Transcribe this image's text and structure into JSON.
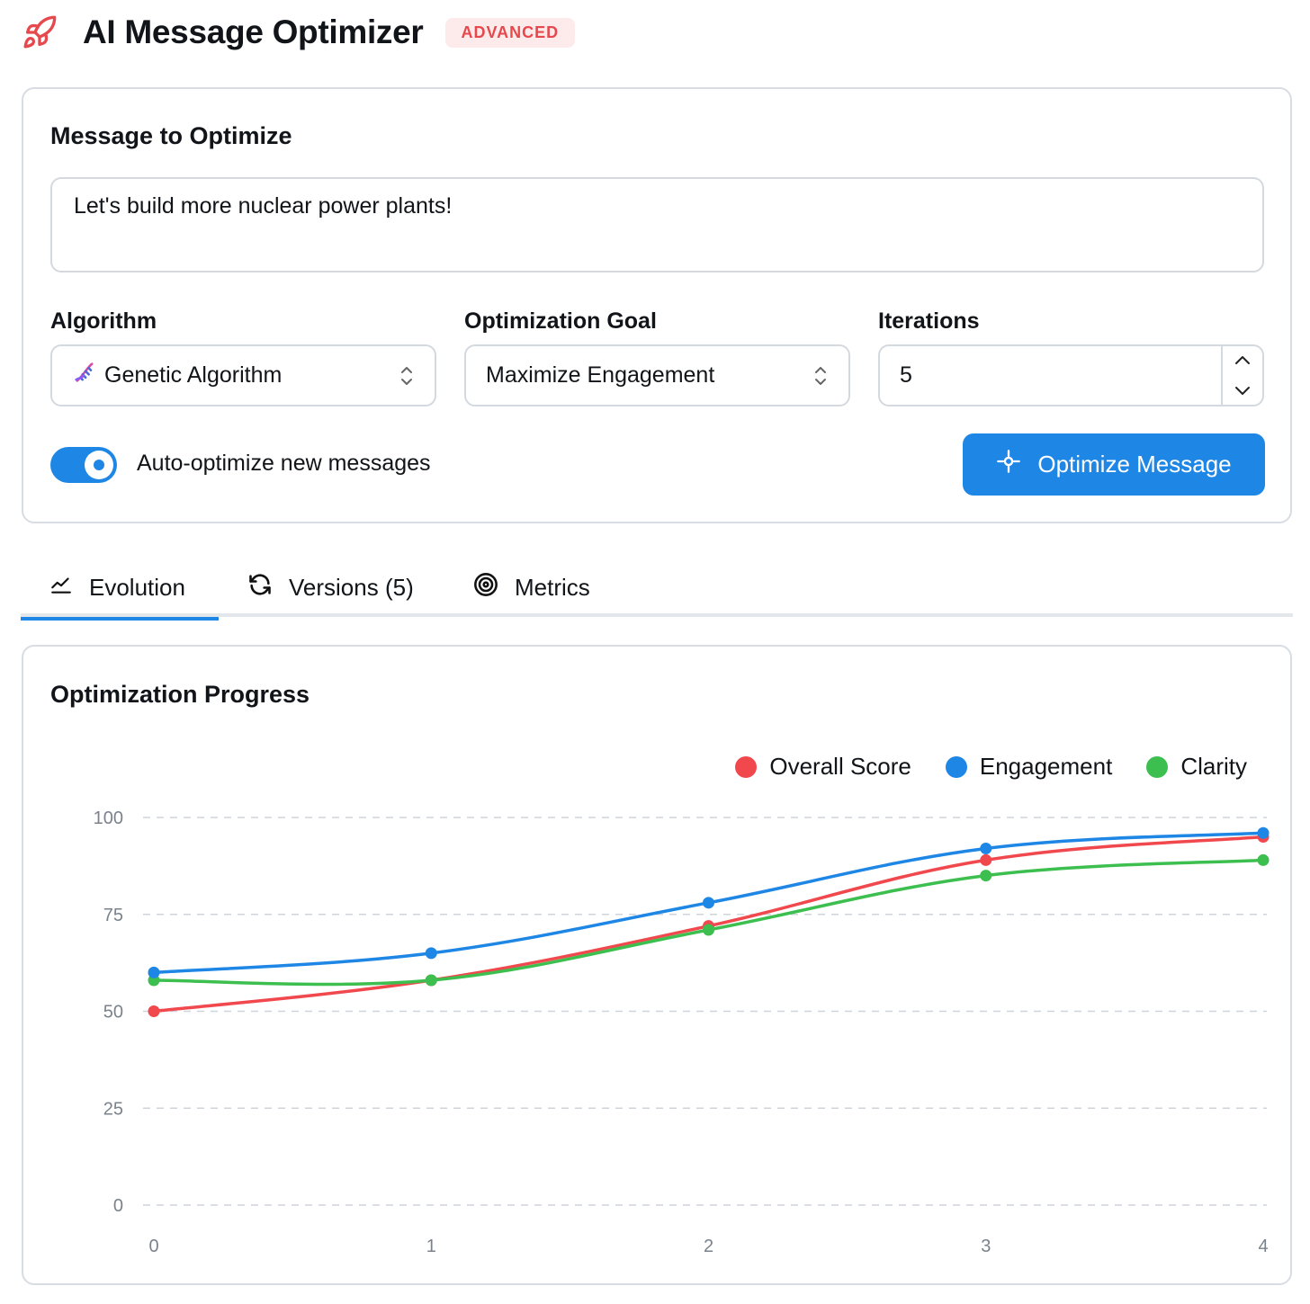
{
  "app": {
    "title": "AI Message Optimizer",
    "badge": "ADVANCED",
    "icon": "rocket-icon"
  },
  "composer": {
    "section_title": "Message to Optimize",
    "message": "Let's build more nuclear power plants!",
    "algorithm": {
      "label": "Algorithm",
      "value": "Genetic Algorithm",
      "icon": "dna-icon"
    },
    "goal": {
      "label": "Optimization Goal",
      "value": "Maximize Engagement"
    },
    "iterations": {
      "label": "Iterations",
      "value": "5"
    },
    "auto_optimize": {
      "label": "Auto-optimize new messages",
      "enabled": true
    },
    "optimize_button": "Optimize Message"
  },
  "tabs": [
    {
      "label": "Evolution",
      "icon": "trend-line-icon",
      "active": true
    },
    {
      "label": "Versions (5)",
      "icon": "refresh-icon",
      "active": false
    },
    {
      "label": "Metrics",
      "icon": "target-icon",
      "active": false
    }
  ],
  "chart_section": {
    "title": "Optimization Progress"
  },
  "chart_data": {
    "type": "line",
    "title": "Optimization Progress",
    "x": [
      0,
      1,
      2,
      3,
      4
    ],
    "ylim": [
      0,
      100
    ],
    "yticks": [
      0,
      25,
      50,
      75,
      100
    ],
    "grid": true,
    "legend_position": "top-right",
    "series": [
      {
        "name": "Overall Score",
        "color": "#f0484d",
        "values": [
          50,
          58,
          72,
          89,
          95
        ]
      },
      {
        "name": "Engagement",
        "color": "#1e86e5",
        "values": [
          60,
          65,
          78,
          92,
          96
        ]
      },
      {
        "name": "Clarity",
        "color": "#3cbf4f",
        "values": [
          58,
          58,
          71,
          85,
          89
        ]
      }
    ]
  },
  "colors": {
    "accent": "#1e86e5",
    "badge_text": "#e5484d",
    "badge_bg": "#fdeaea"
  }
}
